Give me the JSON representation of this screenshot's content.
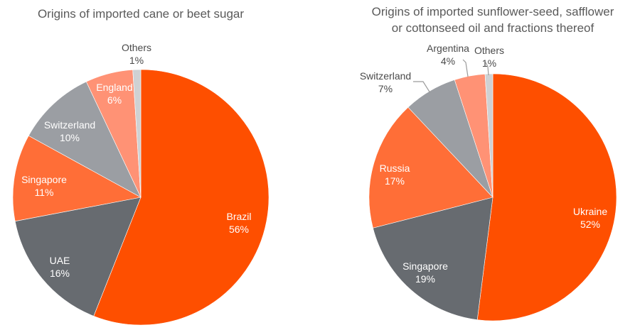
{
  "chart_data": [
    {
      "type": "pie",
      "title": "Origins of imported cane or beet sugar",
      "slices": [
        {
          "label": "Brazil",
          "value": 56,
          "value_text": "56%",
          "color": "#fe4f00"
        },
        {
          "label": "UAE",
          "value": 16,
          "value_text": "16%",
          "color": "#676b70"
        },
        {
          "label": "Singapore",
          "value": 11,
          "value_text": "11%",
          "color": "#ff6e37"
        },
        {
          "label": "Switzerland",
          "value": 10,
          "value_text": "10%",
          "color": "#9b9ea3"
        },
        {
          "label": "England",
          "value": 6,
          "value_text": "6%",
          "color": "#ff9275"
        },
        {
          "label": "Others",
          "value": 1,
          "value_text": "1%",
          "color": "#cfd1d3"
        }
      ]
    },
    {
      "type": "pie",
      "title": "Origins of imported sunflower-seed, safflower or cottonseed oil and fractions thereof",
      "title_lines": [
        "Origins of imported sunflower-seed, safflower",
        "or cottonseed oil and fractions thereof"
      ],
      "slices": [
        {
          "label": "Ukraine",
          "value": 52,
          "value_text": "52%",
          "color": "#fe4f00"
        },
        {
          "label": "Singapore",
          "value": 19,
          "value_text": "19%",
          "color": "#676b70"
        },
        {
          "label": "Russia",
          "value": 17,
          "value_text": "17%",
          "color": "#ff6e37"
        },
        {
          "label": "Switzerland",
          "value": 7,
          "value_text": "7%",
          "color": "#9b9ea3"
        },
        {
          "label": "Argentina",
          "value": 4,
          "value_text": "4%",
          "color": "#ff9275"
        },
        {
          "label": "Others",
          "value": 1,
          "value_text": "1%",
          "color": "#cfd1d3"
        }
      ]
    }
  ]
}
